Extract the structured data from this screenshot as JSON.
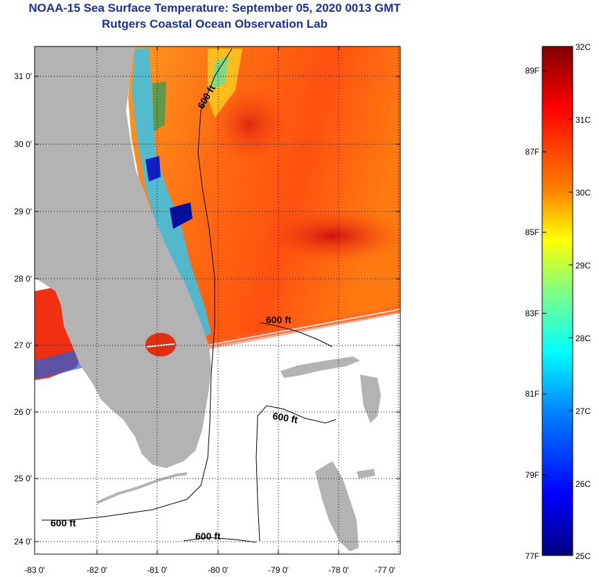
{
  "header": {
    "title": "NOAA-15 Sea Surface Temperature:  September 05, 2020 0013 GMT",
    "subtitle": "Rutgers Coastal Ocean Observation Lab"
  },
  "axes": {
    "lat_labels": [
      "31 0'",
      "30 0'",
      "29 0'",
      "28 0'",
      "27 0'",
      "26 0'",
      "25 0'",
      "24 0'"
    ],
    "lon_labels": [
      "-83 0'",
      "-82 0'",
      "-81 0'",
      "-80 0'",
      "-79 0'",
      "-78 0'",
      "-77 0'"
    ]
  },
  "contours": {
    "label_1": "600 ft",
    "label_2": "600 ft",
    "label_3": "600 ft",
    "label_4": "600 ft",
    "label_5": "600 ft"
  },
  "colorbar": {
    "celsius": [
      "32C",
      "31C",
      "30C",
      "29C",
      "28C",
      "27C",
      "26C",
      "25C"
    ],
    "fahrenheit": [
      "89F",
      "87F",
      "85F",
      "83F",
      "81F",
      "79F",
      "77F"
    ],
    "colors": [
      "#00007f",
      "#0000ff",
      "#0080ff",
      "#00ffff",
      "#80ff80",
      "#ffff00",
      "#ff8000",
      "#ff0000",
      "#7f0000"
    ]
  },
  "colors": {
    "land": "#b3b3b3",
    "title": "#1a2fa0"
  }
}
